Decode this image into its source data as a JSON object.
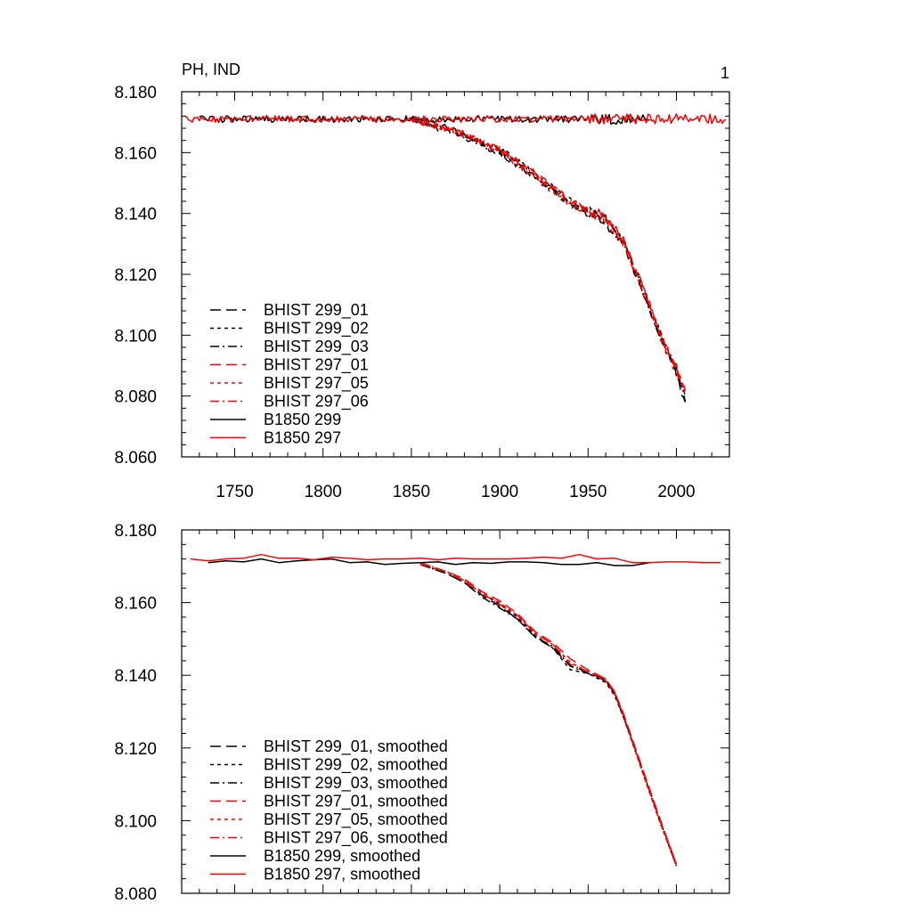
{
  "figure": {
    "title_left": "PH, IND",
    "title_right": "1"
  },
  "colors": {
    "black": "#000000",
    "red": "#ff0000"
  },
  "chart_data": [
    {
      "type": "line",
      "title": "PH, IND",
      "panel_label": "1",
      "xlabel": "",
      "ylabel": "",
      "xlim": [
        1720,
        2030
      ],
      "ylim": [
        8.06,
        8.18
      ],
      "x_ticks": [
        1750,
        1800,
        1850,
        1900,
        1950,
        2000
      ],
      "y_ticks": [
        "8.060",
        "8.080",
        "8.100",
        "8.120",
        "8.140",
        "8.160",
        "8.180"
      ],
      "legend_position": "lower-left",
      "series": [
        {
          "name": "BHIST 299_01",
          "color": "#000000",
          "dash": "long-dash",
          "noisy": true,
          "x": [
            1850,
            1870,
            1880,
            1900,
            1920,
            1940,
            1960,
            1970,
            1980,
            1990,
            2000,
            2005
          ],
          "y": [
            8.171,
            8.168,
            8.166,
            8.16,
            8.152,
            8.143,
            8.137,
            8.13,
            8.116,
            8.1,
            8.088,
            8.077
          ]
        },
        {
          "name": "BHIST 299_02",
          "color": "#000000",
          "dash": "short-dash",
          "noisy": true,
          "x": [
            1850,
            1870,
            1880,
            1900,
            1920,
            1940,
            1960,
            1970,
            1980,
            1990,
            2000,
            2005
          ],
          "y": [
            8.171,
            8.168,
            8.166,
            8.161,
            8.153,
            8.144,
            8.138,
            8.131,
            8.117,
            8.101,
            8.089,
            8.08
          ]
        },
        {
          "name": "BHIST 299_03",
          "color": "#000000",
          "dash": "dash-dot",
          "noisy": true,
          "x": [
            1850,
            1870,
            1880,
            1900,
            1920,
            1940,
            1960,
            1970,
            1980,
            1990,
            2000,
            2005
          ],
          "y": [
            8.171,
            8.167,
            8.165,
            8.16,
            8.152,
            8.143,
            8.138,
            8.13,
            8.117,
            8.101,
            8.088,
            8.079
          ]
        },
        {
          "name": "BHIST 297_01",
          "color": "#ff0000",
          "dash": "long-dash",
          "noisy": true,
          "x": [
            1850,
            1870,
            1880,
            1900,
            1920,
            1940,
            1960,
            1970,
            1980,
            1990,
            2000,
            2005
          ],
          "y": [
            8.171,
            8.168,
            8.166,
            8.161,
            8.153,
            8.144,
            8.139,
            8.131,
            8.117,
            8.102,
            8.089,
            8.081
          ]
        },
        {
          "name": "BHIST 297_05",
          "color": "#ff0000",
          "dash": "short-dash",
          "noisy": true,
          "x": [
            1850,
            1870,
            1880,
            1900,
            1920,
            1940,
            1960,
            1970,
            1980,
            1990,
            2000,
            2005
          ],
          "y": [
            8.171,
            8.168,
            8.166,
            8.16,
            8.152,
            8.143,
            8.138,
            8.13,
            8.116,
            8.101,
            8.088,
            8.08
          ]
        },
        {
          "name": "BHIST 297_06",
          "color": "#ff0000",
          "dash": "dash-dot",
          "noisy": true,
          "x": [
            1850,
            1870,
            1880,
            1900,
            1920,
            1940,
            1960,
            1970,
            1980,
            1990,
            2000,
            2005
          ],
          "y": [
            8.171,
            8.168,
            8.166,
            8.161,
            8.153,
            8.144,
            8.138,
            8.131,
            8.117,
            8.102,
            8.089,
            8.082
          ]
        },
        {
          "name": "B1850 299",
          "color": "#000000",
          "dash": "solid",
          "noisy": true,
          "x": [
            1730,
            1800,
            1850,
            1900,
            1950,
            1985
          ],
          "y": [
            8.171,
            8.171,
            8.171,
            8.171,
            8.171,
            8.171
          ]
        },
        {
          "name": "B1850 297",
          "color": "#ff0000",
          "dash": "solid",
          "noisy": true,
          "x": [
            1722,
            1800,
            1850,
            1900,
            1950,
            2000,
            2028
          ],
          "y": [
            8.171,
            8.171,
            8.171,
            8.171,
            8.171,
            8.171,
            8.171
          ]
        }
      ]
    },
    {
      "type": "line",
      "title": "",
      "xlabel": "",
      "ylabel": "",
      "xlim": [
        1720,
        2030
      ],
      "ylim": [
        8.08,
        8.18
      ],
      "x_ticks": [
        1750,
        1800,
        1850,
        1900,
        1950,
        2000
      ],
      "y_ticks": [
        "8.080",
        "8.100",
        "8.120",
        "8.140",
        "8.160",
        "8.180"
      ],
      "legend_position": "lower-left",
      "series": [
        {
          "name": "BHIST 299_01, smoothed",
          "color": "#000000",
          "dash": "long-dash",
          "x": [
            1855,
            1870,
            1880,
            1890,
            1900,
            1910,
            1920,
            1930,
            1940,
            1950,
            1960,
            1965,
            1970,
            1980,
            1990,
            2000
          ],
          "y": [
            8.1705,
            8.168,
            8.1655,
            8.162,
            8.159,
            8.1555,
            8.1505,
            8.1475,
            8.1425,
            8.141,
            8.1385,
            8.135,
            8.129,
            8.115,
            8.101,
            8.088
          ]
        },
        {
          "name": "BHIST 299_02, smoothed",
          "color": "#000000",
          "dash": "short-dash",
          "x": [
            1855,
            1870,
            1880,
            1890,
            1900,
            1910,
            1920,
            1930,
            1940,
            1950,
            1960,
            1965,
            1970,
            1980,
            1990,
            2000
          ],
          "y": [
            8.1705,
            8.1685,
            8.166,
            8.1625,
            8.1595,
            8.156,
            8.151,
            8.1475,
            8.1415,
            8.1405,
            8.138,
            8.1345,
            8.1285,
            8.1145,
            8.1005,
            8.0875
          ]
        },
        {
          "name": "BHIST 299_03, smoothed",
          "color": "#000000",
          "dash": "dash-dot",
          "x": [
            1855,
            1870,
            1880,
            1890,
            1900,
            1910,
            1920,
            1930,
            1940,
            1950,
            1960,
            1965,
            1970,
            1980,
            1990,
            2000
          ],
          "y": [
            8.1705,
            8.168,
            8.1655,
            8.1615,
            8.1585,
            8.1555,
            8.1505,
            8.148,
            8.1425,
            8.1405,
            8.1385,
            8.135,
            8.1285,
            8.115,
            8.101,
            8.0875
          ]
        },
        {
          "name": "BHIST 297_01, smoothed",
          "color": "#ff0000",
          "dash": "long-dash",
          "x": [
            1855,
            1870,
            1880,
            1890,
            1900,
            1910,
            1920,
            1930,
            1940,
            1950,
            1960,
            1965,
            1970,
            1980,
            1990,
            2000
          ],
          "y": [
            8.171,
            8.1685,
            8.1665,
            8.163,
            8.1605,
            8.157,
            8.152,
            8.149,
            8.1445,
            8.1415,
            8.139,
            8.1355,
            8.1295,
            8.1155,
            8.1015,
            8.088
          ]
        },
        {
          "name": "BHIST 297_05, smoothed",
          "color": "#ff0000",
          "dash": "short-dash",
          "x": [
            1855,
            1870,
            1880,
            1890,
            1900,
            1910,
            1920,
            1930,
            1940,
            1950,
            1960,
            1965,
            1970,
            1980,
            1990,
            2000
          ],
          "y": [
            8.1705,
            8.1685,
            8.166,
            8.1625,
            8.16,
            8.1565,
            8.1515,
            8.1485,
            8.1435,
            8.141,
            8.1385,
            8.135,
            8.129,
            8.1145,
            8.1005,
            8.0875
          ]
        },
        {
          "name": "BHIST 297_06, smoothed",
          "color": "#ff0000",
          "dash": "dash-dot",
          "x": [
            1855,
            1870,
            1880,
            1890,
            1900,
            1910,
            1920,
            1930,
            1940,
            1950,
            1960,
            1965,
            1970,
            1980,
            1990,
            2000
          ],
          "y": [
            8.171,
            8.1685,
            8.166,
            8.1625,
            8.1595,
            8.1565,
            8.1515,
            8.1485,
            8.143,
            8.141,
            8.139,
            8.1355,
            8.129,
            8.115,
            8.101,
            8.088
          ]
        },
        {
          "name": "B1850 299, smoothed",
          "color": "#000000",
          "dash": "solid",
          "x": [
            1735,
            1745,
            1755,
            1765,
            1775,
            1785,
            1795,
            1805,
            1815,
            1825,
            1835,
            1845,
            1855,
            1865,
            1875,
            1885,
            1895,
            1905,
            1915,
            1925,
            1935,
            1945,
            1955,
            1965,
            1975,
            1985
          ],
          "y": [
            8.171,
            8.1715,
            8.1712,
            8.172,
            8.171,
            8.1715,
            8.1718,
            8.172,
            8.171,
            8.1712,
            8.1705,
            8.1708,
            8.171,
            8.1712,
            8.1705,
            8.171,
            8.1708,
            8.1712,
            8.1712,
            8.171,
            8.1705,
            8.1705,
            8.171,
            8.1702,
            8.1702,
            8.171
          ]
        },
        {
          "name": "B1850 297, smoothed",
          "color": "#ff0000",
          "dash": "solid",
          "x": [
            1725,
            1735,
            1745,
            1755,
            1765,
            1775,
            1785,
            1795,
            1805,
            1815,
            1825,
            1835,
            1845,
            1855,
            1865,
            1875,
            1885,
            1895,
            1905,
            1915,
            1925,
            1935,
            1945,
            1955,
            1965,
            1975,
            1985,
            1995,
            2005,
            2015,
            2025
          ],
          "y": [
            8.172,
            8.1715,
            8.172,
            8.1722,
            8.1732,
            8.1722,
            8.1722,
            8.1718,
            8.1725,
            8.1722,
            8.1718,
            8.172,
            8.172,
            8.1722,
            8.1718,
            8.1722,
            8.172,
            8.172,
            8.172,
            8.1722,
            8.1725,
            8.1722,
            8.1732,
            8.172,
            8.1722,
            8.171,
            8.171,
            8.1712,
            8.1712,
            8.171,
            8.171
          ]
        }
      ]
    }
  ]
}
